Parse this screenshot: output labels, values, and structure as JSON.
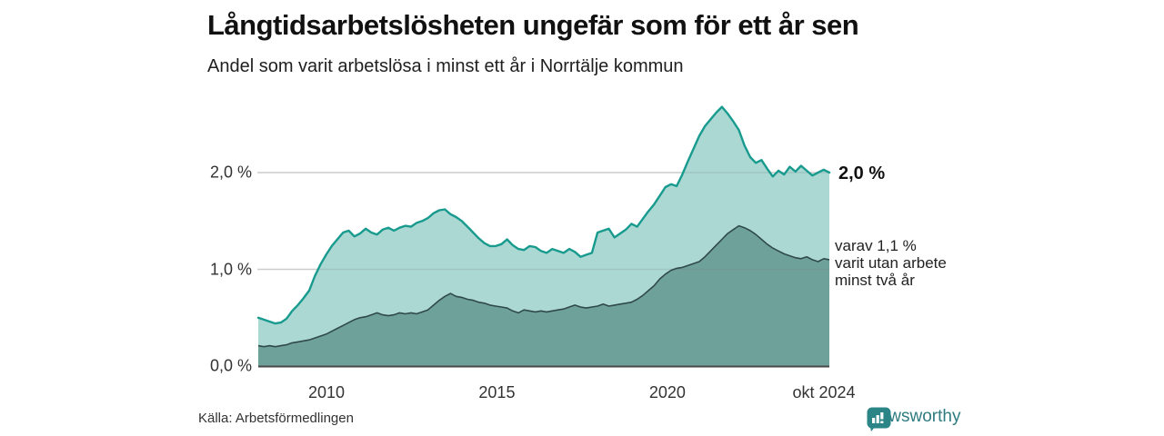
{
  "header": {
    "title": "Långtidsarbetslösheten ungefär som för ett år sen",
    "subtitle": "Andel som varit arbetslösa i minst ett år i Norrtälje kommun"
  },
  "chart": {
    "colors": {
      "upper_line": "#189b8e",
      "upper_fill": "#abd8d2",
      "lower_line": "#30494b",
      "lower_fill": "#6fa19b",
      "gridline": "#e2e2e2",
      "baseline": "#474747"
    },
    "y_ticks": [
      {
        "label": "0,0 %",
        "value": 0
      },
      {
        "label": "1,0 %",
        "value": 1
      },
      {
        "label": "2,0 %",
        "value": 2
      }
    ],
    "x_ticks": [
      {
        "label": "2010",
        "year": 2010
      },
      {
        "label": "2015",
        "year": 2015
      },
      {
        "label": "2020",
        "year": 2020
      },
      {
        "label": "okt 2024",
        "year": 2024.75
      }
    ],
    "annotations": {
      "end_value": "2,0 %",
      "sub_lines": [
        "varav 1,1 %",
        "varit utan arbete",
        "minst två år"
      ]
    }
  },
  "chart_data": {
    "type": "area",
    "title": "Långtidsarbetslösheten ungefär som för ett år sen",
    "subtitle": "Andel som varit arbetslösa i minst ett år i Norrtälje kommun",
    "unit": "%",
    "x_start": "jan 2008",
    "x_end": "okt 2024",
    "x_step": "2 månader (jämnt samplat)",
    "ylim": [
      0,
      2.8
    ],
    "grid": "horizontal",
    "legend_position": "right-annotations",
    "series": [
      {
        "name": "Andel arbetslösa minst ett år",
        "end_label": "2,0 %",
        "values": [
          0.5,
          0.48,
          0.46,
          0.44,
          0.45,
          0.49,
          0.57,
          0.63,
          0.7,
          0.78,
          0.93,
          1.05,
          1.15,
          1.24,
          1.31,
          1.38,
          1.4,
          1.34,
          1.37,
          1.42,
          1.38,
          1.36,
          1.41,
          1.43,
          1.4,
          1.43,
          1.45,
          1.44,
          1.48,
          1.5,
          1.53,
          1.58,
          1.61,
          1.62,
          1.57,
          1.54,
          1.5,
          1.44,
          1.38,
          1.32,
          1.27,
          1.24,
          1.24,
          1.26,
          1.31,
          1.25,
          1.21,
          1.2,
          1.24,
          1.23,
          1.19,
          1.17,
          1.21,
          1.19,
          1.17,
          1.21,
          1.18,
          1.13,
          1.15,
          1.17,
          1.38,
          1.4,
          1.42,
          1.33,
          1.37,
          1.41,
          1.47,
          1.44,
          1.52,
          1.6,
          1.67,
          1.76,
          1.85,
          1.88,
          1.86,
          1.98,
          2.12,
          2.25,
          2.38,
          2.48,
          2.55,
          2.62,
          2.68,
          2.61,
          2.53,
          2.44,
          2.28,
          2.16,
          2.1,
          2.13,
          2.04,
          1.96,
          2.02,
          1.98,
          2.06,
          2.01,
          2.07,
          2.02,
          1.97,
          2.0,
          2.03,
          2.0
        ]
      },
      {
        "name": "varav utan arbete minst två år",
        "end_label": "varav 1,1 % varit utan arbete minst två år",
        "values": [
          0.21,
          0.2,
          0.21,
          0.2,
          0.21,
          0.22,
          0.24,
          0.25,
          0.26,
          0.27,
          0.29,
          0.31,
          0.33,
          0.36,
          0.39,
          0.42,
          0.45,
          0.48,
          0.5,
          0.51,
          0.53,
          0.55,
          0.53,
          0.52,
          0.53,
          0.55,
          0.54,
          0.55,
          0.54,
          0.56,
          0.58,
          0.63,
          0.68,
          0.72,
          0.75,
          0.72,
          0.71,
          0.69,
          0.68,
          0.66,
          0.65,
          0.63,
          0.62,
          0.61,
          0.6,
          0.57,
          0.55,
          0.58,
          0.57,
          0.56,
          0.57,
          0.56,
          0.57,
          0.58,
          0.59,
          0.61,
          0.63,
          0.61,
          0.6,
          0.61,
          0.62,
          0.64,
          0.62,
          0.63,
          0.64,
          0.65,
          0.66,
          0.69,
          0.73,
          0.78,
          0.83,
          0.9,
          0.95,
          0.99,
          1.01,
          1.02,
          1.04,
          1.06,
          1.08,
          1.13,
          1.19,
          1.25,
          1.31,
          1.37,
          1.41,
          1.45,
          1.43,
          1.4,
          1.36,
          1.31,
          1.26,
          1.22,
          1.19,
          1.16,
          1.14,
          1.12,
          1.11,
          1.13,
          1.1,
          1.08,
          1.11,
          1.1
        ]
      }
    ]
  },
  "footer": {
    "source": "Källa: Arbetsförmedlingen",
    "brand": "Newsworthy"
  }
}
